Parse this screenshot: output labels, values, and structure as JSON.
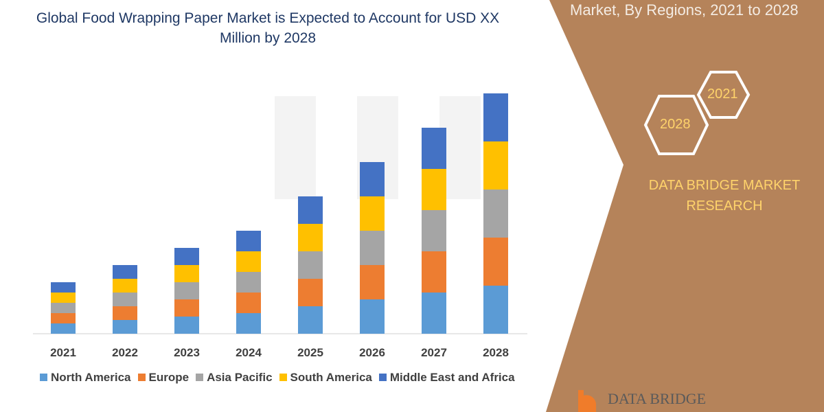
{
  "header": {
    "title": "Global Food Wrapping Paper Market is Expected to Account for USD XX Million by 2028",
    "side_title": "Market, By Regions, 2021 to 2028"
  },
  "side": {
    "hex_a": "2021",
    "hex_b": "2028",
    "brand": "DATA BRIDGE MARKET RESEARCH",
    "logo_text": "DATA BRIDGE",
    "panel_color": "#B5835A",
    "watermark": "DATA BRIDGE"
  },
  "chart_data": {
    "type": "bar",
    "stacked": true,
    "categories": [
      "2021",
      "2022",
      "2023",
      "2024",
      "2025",
      "2026",
      "2027",
      "2028"
    ],
    "series": [
      {
        "name": "North America",
        "color": "#5B9BD5",
        "values": [
          15,
          20,
          25,
          30,
          40,
          50,
          60,
          70
        ]
      },
      {
        "name": "Europe",
        "color": "#ED7D31",
        "values": [
          15,
          20,
          25,
          30,
          40,
          50,
          60,
          70
        ]
      },
      {
        "name": "Asia Pacific",
        "color": "#A5A5A5",
        "values": [
          15,
          20,
          25,
          30,
          40,
          50,
          60,
          70
        ]
      },
      {
        "name": "South America",
        "color": "#FFC000",
        "values": [
          15,
          20,
          25,
          30,
          40,
          50,
          60,
          70
        ]
      },
      {
        "name": "Middle East and Africa",
        "color": "#4472C4",
        "values": [
          15,
          20,
          25,
          30,
          40,
          50,
          60,
          70
        ]
      }
    ],
    "legend": "bottom",
    "grid": false
  }
}
